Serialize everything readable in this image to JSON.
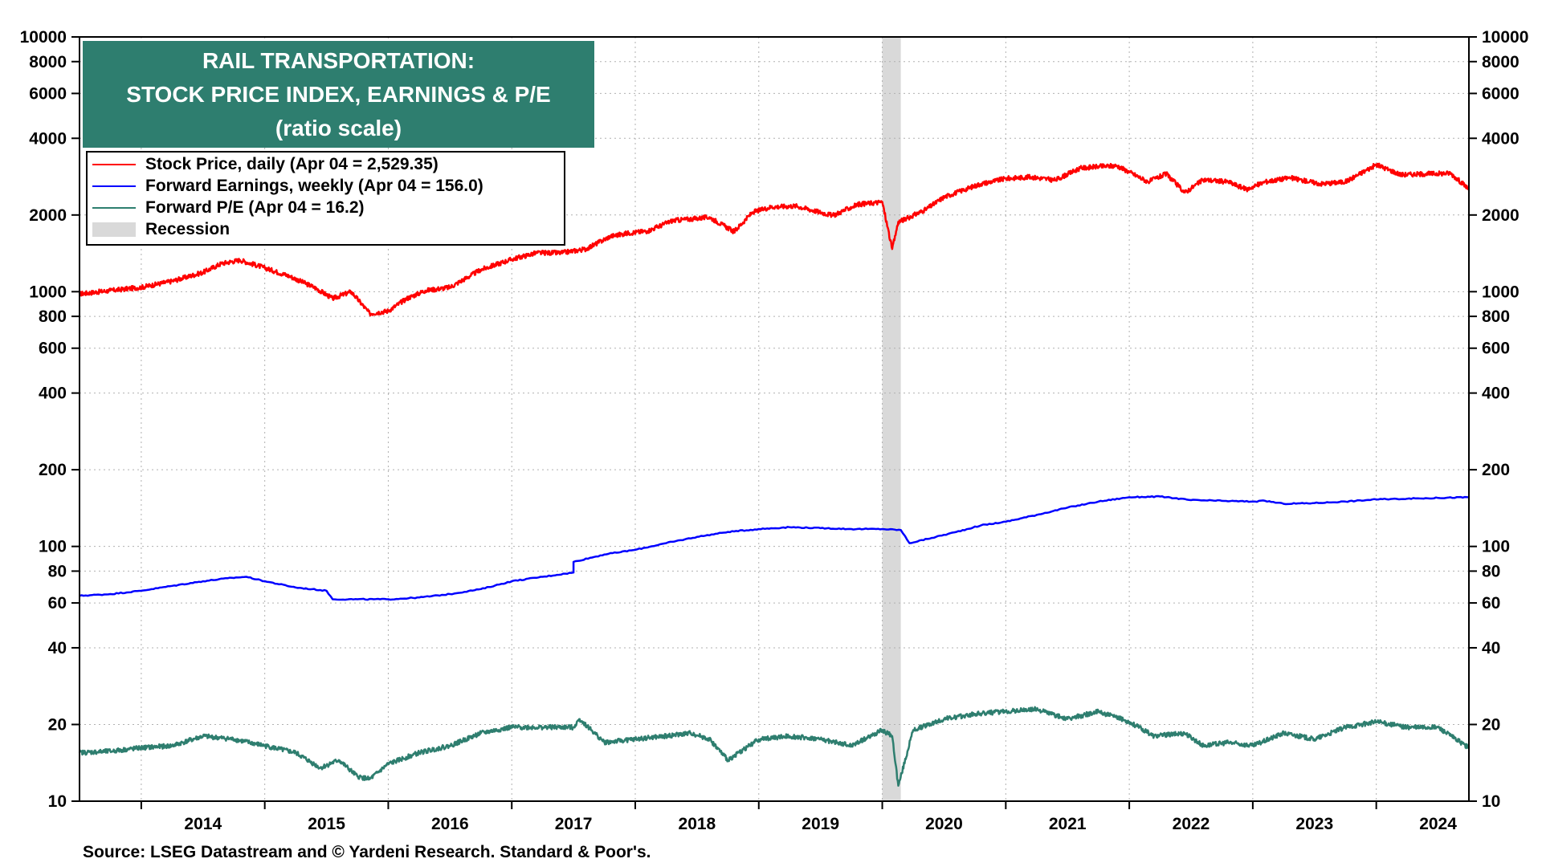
{
  "title": {
    "line1": "RAIL TRANSPORTATION:",
    "line2": "STOCK PRICE INDEX, EARNINGS & P/E",
    "line3": "(ratio scale)"
  },
  "legend": [
    {
      "label": "Stock Price, daily (Apr 04 = 2,529.35)",
      "color": "#ff0000",
      "kind": "line"
    },
    {
      "label": "Forward Earnings, weekly (Apr 04 = 156.0)",
      "color": "#0000ff",
      "kind": "line"
    },
    {
      "label": "Forward P/E (Apr 04 = 16.2)",
      "color": "#2e7e6f",
      "kind": "line"
    },
    {
      "label": "Recession",
      "color": "#d9d9d9",
      "kind": "block"
    }
  ],
  "source": "Source: LSEG Datastream and © Yardeni Research. Standard & Poor's.",
  "chart_data": {
    "type": "line",
    "y_scale": "log",
    "ylim": [
      10,
      10000
    ],
    "xlim": [
      2013.5,
      2024.75
    ],
    "yticks": [
      10,
      20,
      40,
      60,
      80,
      100,
      200,
      400,
      600,
      800,
      1000,
      2000,
      4000,
      6000,
      8000,
      10000
    ],
    "ytick_labels": [
      "10",
      "20",
      "40",
      "60",
      "80",
      "100",
      "200",
      "400",
      "600",
      "800",
      "1000",
      "2000",
      "4000",
      "6000",
      "8000",
      "10000"
    ],
    "xtick_labels": [
      "2014",
      "2015",
      "2016",
      "2017",
      "2018",
      "2019",
      "2020",
      "2021",
      "2022",
      "2023",
      "2024"
    ],
    "grid": true,
    "legend_position": "top-left",
    "recession": [
      2020.0,
      2020.15
    ],
    "series": [
      {
        "name": "Stock Price, daily (Apr 04 = 2,529.35)",
        "color": "#ff0000",
        "x": [
          2013.5,
          2013.75,
          2014.0,
          2014.25,
          2014.5,
          2014.65,
          2014.8,
          2015.0,
          2015.2,
          2015.4,
          2015.55,
          2015.7,
          2015.85,
          2016.0,
          2016.15,
          2016.3,
          2016.5,
          2016.75,
          2017.0,
          2017.2,
          2017.4,
          2017.6,
          2017.8,
          2017.95,
          2018.1,
          2018.3,
          2018.6,
          2018.8,
          2018.95,
          2019.1,
          2019.3,
          2019.6,
          2019.8,
          2020.0,
          2020.08,
          2020.13,
          2020.2,
          2020.35,
          2020.5,
          2020.65,
          2020.8,
          2021.0,
          2021.2,
          2021.4,
          2021.6,
          2021.75,
          2021.9,
          2022.0,
          2022.15,
          2022.3,
          2022.45,
          2022.6,
          2022.8,
          2022.95,
          2023.1,
          2023.3,
          2023.55,
          2023.75,
          2024.0,
          2024.2,
          2024.4,
          2024.6,
          2024.75
        ],
        "y": [
          980,
          1010,
          1040,
          1100,
          1190,
          1290,
          1330,
          1240,
          1150,
          1040,
          940,
          1000,
          820,
          840,
          940,
          1010,
          1040,
          1220,
          1340,
          1420,
          1420,
          1470,
          1650,
          1700,
          1730,
          1900,
          1960,
          1720,
          2050,
          2150,
          2170,
          1990,
          2200,
          2250,
          1470,
          1880,
          1940,
          2100,
          2350,
          2500,
          2650,
          2780,
          2820,
          2740,
          3050,
          3100,
          3120,
          2950,
          2700,
          2900,
          2450,
          2750,
          2700,
          2520,
          2700,
          2800,
          2650,
          2700,
          3150,
          2880,
          2900,
          2920,
          2529
        ]
      },
      {
        "name": "Forward Earnings, weekly (Apr 04 = 156.0)",
        "color": "#0000ff",
        "x": [
          2013.5,
          2013.75,
          2014.0,
          2014.25,
          2014.5,
          2014.7,
          2014.85,
          2015.0,
          2015.25,
          2015.5,
          2015.55,
          2015.75,
          2016.0,
          2016.25,
          2016.5,
          2016.75,
          2017.0,
          2017.25,
          2017.5,
          2017.5,
          2017.75,
          2018.0,
          2018.25,
          2018.5,
          2018.75,
          2019.0,
          2019.25,
          2019.5,
          2019.75,
          2020.0,
          2020.15,
          2020.22,
          2020.4,
          2020.6,
          2020.8,
          2021.0,
          2021.25,
          2021.5,
          2021.75,
          2022.0,
          2022.25,
          2022.5,
          2022.75,
          2023.0,
          2023.1,
          2023.25,
          2023.5,
          2023.75,
          2024.0,
          2024.25,
          2024.5,
          2024.75
        ],
        "y": [
          64,
          65,
          67,
          70,
          73,
          75,
          76,
          73,
          69,
          67,
          62,
          62,
          62,
          63,
          65,
          68,
          73,
          76,
          79,
          87,
          93,
          97,
          103,
          109,
          114,
          117,
          119,
          118,
          117,
          117,
          116,
          103,
          108,
          114,
          121,
          125,
          133,
          142,
          150,
          156,
          157,
          152,
          151,
          150,
          151,
          147,
          148,
          150,
          153,
          154,
          155,
          156
        ]
      },
      {
        "name": "Forward P/E (Apr 04 = 16.2)",
        "color": "#2e7e6f",
        "x": [
          2013.5,
          2013.75,
          2014.0,
          2014.25,
          2014.5,
          2014.75,
          2015.0,
          2015.25,
          2015.45,
          2015.6,
          2015.75,
          2015.85,
          2016.0,
          2016.25,
          2016.5,
          2016.75,
          2017.0,
          2017.25,
          2017.5,
          2017.55,
          2017.75,
          2018.0,
          2018.25,
          2018.45,
          2018.6,
          2018.75,
          2019.0,
          2019.25,
          2019.5,
          2019.75,
          2020.0,
          2020.08,
          2020.13,
          2020.25,
          2020.5,
          2020.75,
          2021.0,
          2021.25,
          2021.5,
          2021.75,
          2022.0,
          2022.2,
          2022.45,
          2022.6,
          2022.8,
          2023.0,
          2023.25,
          2023.5,
          2023.75,
          2024.0,
          2024.25,
          2024.5,
          2024.75
        ],
        "y": [
          15.5,
          15.7,
          16.2,
          16.5,
          18.0,
          17.5,
          16.5,
          15.5,
          13.5,
          14.5,
          12.5,
          12.2,
          14.0,
          15.5,
          16.5,
          18.5,
          19.5,
          19.5,
          19.5,
          21.0,
          17.0,
          17.5,
          18.0,
          18.5,
          17.5,
          14.5,
          17.5,
          18.0,
          17.5,
          16.5,
          19.0,
          18.0,
          11.5,
          19.0,
          21.0,
          22.0,
          22.5,
          23.0,
          21.0,
          22.5,
          20.5,
          18.0,
          18.5,
          16.5,
          17.0,
          16.5,
          18.5,
          17.5,
          19.5,
          20.5,
          19.5,
          19.5,
          16.2
        ]
      }
    ]
  }
}
